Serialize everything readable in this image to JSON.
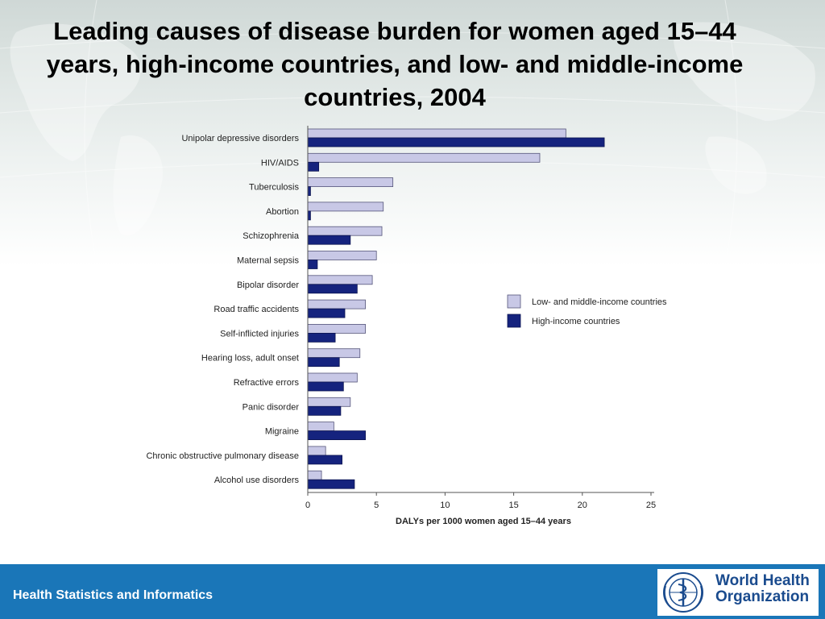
{
  "slide": {
    "title": "Leading causes of disease burden for women aged 15–44 years, high-income countries, and low- and middle-income countries, 2004",
    "footer": "Health Statistics and Informatics",
    "logo_line1": "World Health",
    "logo_line2": "Organization"
  },
  "colors": {
    "low_middle": "#c8c8e6",
    "high": "#15237e",
    "footer": "#1a76b8"
  },
  "chart_data": {
    "type": "bar",
    "orientation": "horizontal",
    "xlabel": "DALYs per 1000 women aged 15–44 years",
    "xlim": [
      0,
      25
    ],
    "xticks": [
      0,
      5,
      10,
      15,
      20,
      25
    ],
    "legend_position": "right",
    "categories": [
      "Unipolar depressive disorders",
      "HIV/AIDS",
      "Tuberculosis",
      "Abortion",
      "Schizophrenia",
      "Maternal sepsis",
      "Bipolar disorder",
      "Road traffic accidents",
      "Self-inflicted injuries",
      "Hearing loss, adult onset",
      "Refractive errors",
      "Panic disorder",
      "Migraine",
      "Chronic obstructive pulmonary disease",
      "Alcohol use disorders"
    ],
    "series": [
      {
        "name": "Low- and middle-income countries",
        "values": [
          18.8,
          16.9,
          6.2,
          5.5,
          5.4,
          5.0,
          4.7,
          4.2,
          4.2,
          3.8,
          3.6,
          3.1,
          1.9,
          1.3,
          1.0
        ]
      },
      {
        "name": "High-income countries",
        "values": [
          21.6,
          0.8,
          0.2,
          0.2,
          3.1,
          0.7,
          3.6,
          2.7,
          2.0,
          2.3,
          2.6,
          2.4,
          4.2,
          2.5,
          3.4
        ]
      }
    ]
  }
}
